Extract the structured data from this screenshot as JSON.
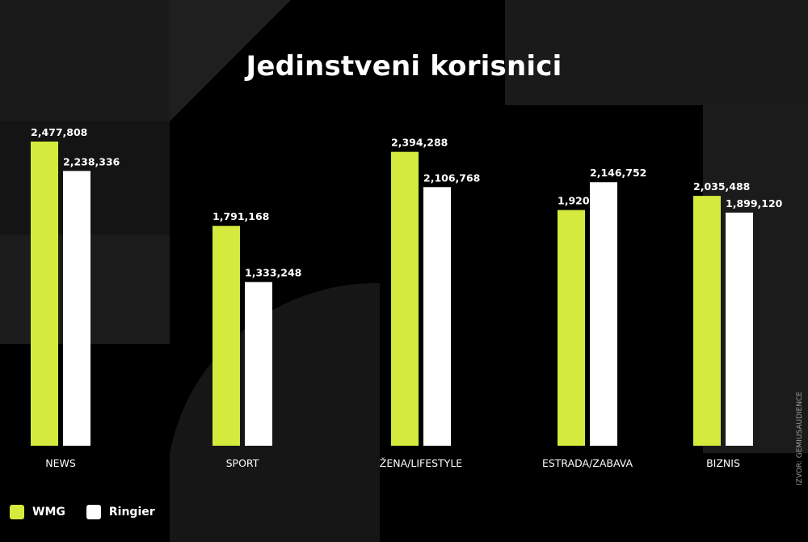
{
  "title": "Jedinstveni korisnici",
  "source": "IZVOR: GEMIUSAUDIENCE",
  "colors": {
    "background": "#000000",
    "wmg": "#d4ea3c",
    "ringier": "#ffffff",
    "decor": "#1e1e1e"
  },
  "legend": [
    {
      "name": "WMG",
      "color": "#d4ea3c"
    },
    {
      "name": "Ringier",
      "color": "#ffffff"
    }
  ],
  "chart_data": {
    "type": "bar",
    "title": "Jedinstveni korisnici",
    "categories": [
      "NEWS",
      "SPORT",
      "ŽENA/LIFESTYLE",
      "ESTRADA/ZABAVA",
      "BIZNIS"
    ],
    "series": [
      {
        "name": "WMG",
        "values": [
          2477808,
          1791168,
          2394288,
          1920000,
          2035488
        ],
        "labels": [
          "2,477,808",
          "1,791,168",
          "2,394,288",
          "1,920,000",
          "2,035,488"
        ]
      },
      {
        "name": "Ringier",
        "values": [
          2238336,
          1333248,
          2106768,
          2146752,
          1899120
        ],
        "labels": [
          "2,238,336",
          "1,333,248",
          "2,106,768",
          "2,146,752",
          "1,899,120"
        ]
      }
    ],
    "xlabel": "",
    "ylabel": "",
    "grid": false,
    "legend_position": "bottom-left"
  }
}
